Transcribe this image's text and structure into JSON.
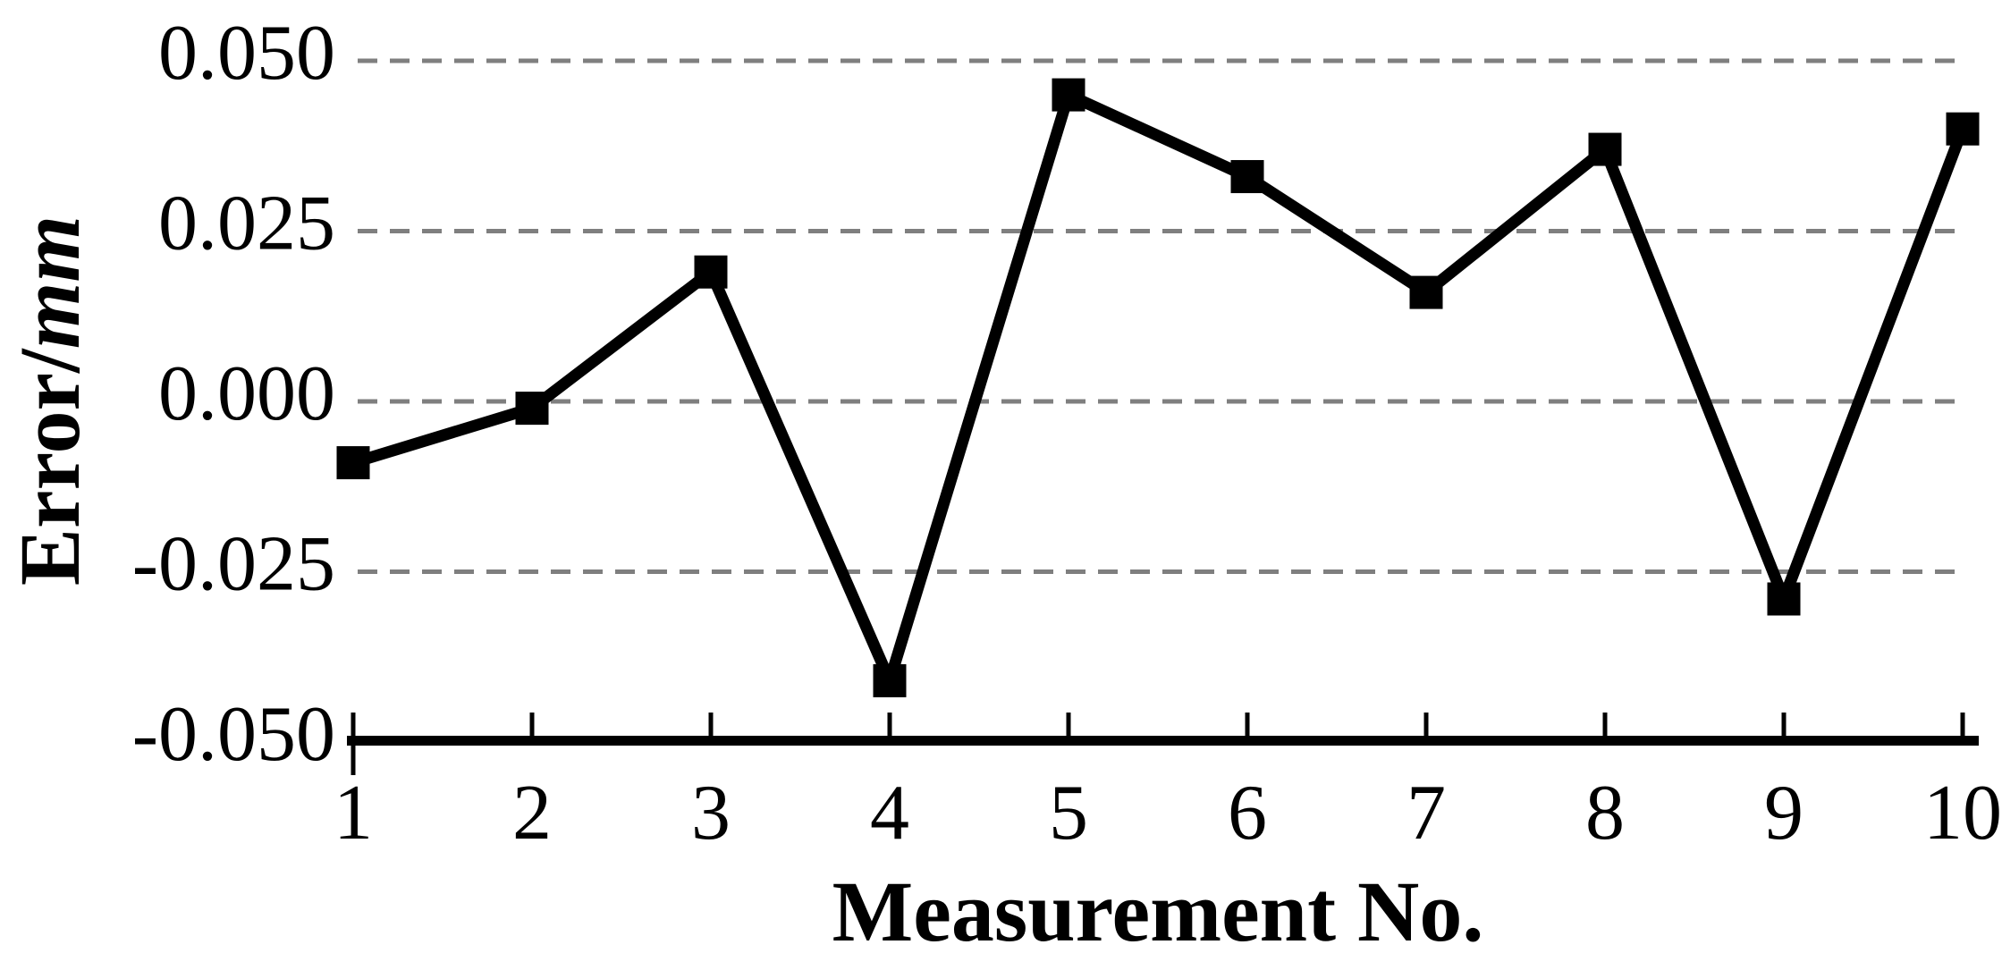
{
  "chart_data": {
    "type": "line",
    "title": "",
    "xlabel": "Measurement No.",
    "ylabel": "Error/mm",
    "ylabel_regular": "Error/",
    "ylabel_italic": "mm",
    "categories": [
      1,
      2,
      3,
      4,
      5,
      6,
      7,
      8,
      9,
      10
    ],
    "xtick_labels": [
      "1",
      "2",
      "3",
      "4",
      "5",
      "6",
      "7",
      "8",
      "9",
      "10"
    ],
    "series": [
      {
        "name": "Error",
        "values": [
          -0.009,
          -0.001,
          0.019,
          -0.041,
          0.045,
          0.033,
          0.016,
          0.037,
          -0.029,
          0.04
        ]
      }
    ],
    "ylim": [
      -0.05,
      0.05
    ],
    "yticks": [
      {
        "label": "0.050",
        "value": 0.05
      },
      {
        "label": "0.025",
        "value": 0.025
      },
      {
        "label": "0.000",
        "value": 0.0
      },
      {
        "label": "-0.025",
        "value": -0.025
      },
      {
        "label": "-0.050",
        "value": -0.05
      }
    ],
    "grid": "horizontal-dashed",
    "legend": "none",
    "marker": "square",
    "colors": {
      "line": "#000000",
      "marker": "#000000",
      "gridline": "#7F7F7F",
      "axis": "#000000",
      "text": "#000000",
      "background": "#FFFFFF"
    }
  }
}
